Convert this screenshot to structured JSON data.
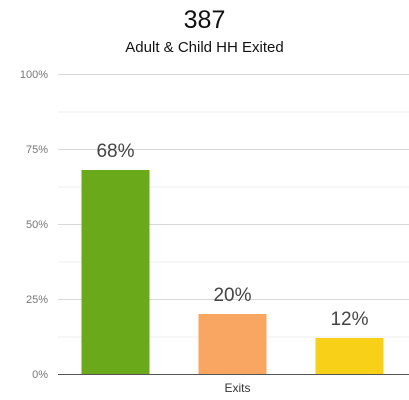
{
  "header": {
    "count": "387",
    "subtitle": "Adult & Child HH Exited"
  },
  "chart_data": {
    "type": "bar",
    "categories": [
      "Exits"
    ],
    "series": [
      {
        "values": [
          68
        ],
        "color": "#6aaa1a"
      },
      {
        "values": [
          20
        ],
        "color": "#f9a662"
      },
      {
        "values": [
          12
        ],
        "color": "#f9d018"
      }
    ],
    "data_labels": [
      "68%",
      "20%",
      "12%"
    ],
    "ylim": [
      0,
      100
    ],
    "y_ticks": [
      {
        "value": 0,
        "label": "0%"
      },
      {
        "value": 25,
        "label": "25%"
      },
      {
        "value": 50,
        "label": "50%"
      },
      {
        "value": 75,
        "label": "75%"
      },
      {
        "value": 100,
        "label": "100%"
      }
    ],
    "minor_grid": [
      12.5,
      37.5,
      62.5,
      87.5
    ],
    "grid": true,
    "legend": "none"
  }
}
